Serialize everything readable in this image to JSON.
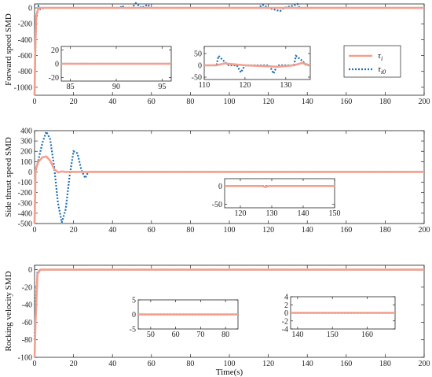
{
  "colors": {
    "tau_i": "#f4a08c",
    "tau_i0": "#1f6fb4",
    "axis": "#222222"
  },
  "legend": {
    "series_1": "τ",
    "series_1_sub": "i",
    "series_2": "τ",
    "series_2_sub": "i0",
    "placement": "inside-top-right-panel-1"
  },
  "chart_data": [
    {
      "type": "line",
      "ylabel": "Forward speed SMD",
      "xlabel": "",
      "xlim": [
        0,
        200
      ],
      "ylim": [
        -1100,
        50
      ],
      "xticks": [
        0,
        20,
        40,
        60,
        80,
        100,
        120,
        140,
        160,
        180,
        200
      ],
      "yticks": [
        0,
        -200,
        -400,
        -600,
        -800,
        -1000
      ],
      "series": [
        {
          "key": "tau_i",
          "name": "τi",
          "x": [
            0,
            0.3,
            0.8,
            2,
            4,
            10,
            44,
            45,
            50,
            60,
            115,
            130,
            140,
            200
          ],
          "y": [
            -1100,
            -600,
            -100,
            0,
            0,
            0,
            0,
            0,
            0,
            0,
            0,
            0,
            0,
            0
          ]
        },
        {
          "key": "tau_i0",
          "name": "τi0",
          "x": [
            0,
            0.3,
            0.8,
            2,
            3,
            5,
            44,
            45,
            46,
            50,
            52,
            55,
            58,
            60,
            115,
            117,
            120,
            126,
            128,
            133,
            135,
            136,
            140,
            200
          ],
          "y": [
            -1100,
            -700,
            -150,
            20,
            -15,
            0,
            0,
            30,
            0,
            0,
            60,
            0,
            40,
            0,
            0,
            40,
            0,
            -40,
            0,
            30,
            50,
            0,
            0,
            0
          ]
        }
      ],
      "insets": [
        {
          "xlim": [
            84,
            96
          ],
          "ylim": [
            -25,
            25
          ],
          "xticks": [
            85,
            90,
            95
          ],
          "yticks": [
            20,
            0,
            -20
          ],
          "series": [
            {
              "key": "tau_i0",
              "x": [
                84,
                96
              ],
              "y": [
                0,
                0
              ]
            },
            {
              "key": "tau_i",
              "x": [
                84,
                96
              ],
              "y": [
                0,
                0
              ]
            }
          ]
        },
        {
          "xlim": [
            110,
            136
          ],
          "ylim": [
            -60,
            80
          ],
          "xticks": [
            110,
            120,
            130
          ],
          "yticks": [
            50,
            0,
            -50
          ],
          "series": [
            {
              "key": "tau_i0",
              "x": [
                110,
                113,
                113.5,
                115,
                116,
                118,
                119,
                119.5,
                120,
                121,
                126,
                127,
                127.5,
                128,
                129,
                132,
                132.5,
                134,
                135,
                136
              ],
              "y": [
                0,
                0,
                40,
                15,
                0,
                0,
                -30,
                -15,
                0,
                0,
                0,
                -35,
                -15,
                0,
                0,
                0,
                40,
                20,
                0,
                0
              ]
            },
            {
              "key": "tau_i",
              "x": [
                110,
                113,
                115,
                120,
                128,
                132,
                134,
                136
              ],
              "y": [
                0,
                0,
                8,
                0,
                -6,
                0,
                10,
                0
              ]
            }
          ]
        }
      ]
    },
    {
      "type": "line",
      "ylabel": "Side thrust speed SMD",
      "xlabel": "",
      "xlim": [
        0,
        200
      ],
      "ylim": [
        -500,
        400
      ],
      "xticks": [
        0,
        20,
        40,
        60,
        80,
        100,
        120,
        140,
        160,
        180,
        200
      ],
      "yticks": [
        400,
        300,
        200,
        100,
        0,
        -100,
        -200,
        -300,
        -400,
        -500
      ],
      "series": [
        {
          "key": "tau_i0",
          "name": "τi0",
          "x": [
            0,
            0.5,
            2,
            4,
            6,
            8,
            10,
            12,
            14,
            16,
            18,
            20,
            22,
            24,
            26,
            27,
            28,
            35,
            200
          ],
          "y": [
            -500,
            0,
            120,
            280,
            390,
            320,
            60,
            -300,
            -490,
            -360,
            -40,
            200,
            180,
            20,
            -60,
            -20,
            0,
            0,
            0
          ]
        },
        {
          "key": "tau_i",
          "name": "τi",
          "x": [
            0,
            0.5,
            2,
            4,
            6,
            8,
            10,
            12,
            14,
            16,
            20,
            200
          ],
          "y": [
            -500,
            20,
            100,
            140,
            150,
            110,
            30,
            -5,
            5,
            0,
            0,
            0
          ]
        }
      ],
      "insets": [
        {
          "xlim": [
            115,
            150
          ],
          "ylim": [
            -60,
            20
          ],
          "xticks": [
            120,
            130,
            140,
            150
          ],
          "yticks": [
            0,
            -50
          ],
          "series": [
            {
              "key": "tau_i0",
              "x": [
                115,
                150
              ],
              "y": [
                0,
                0
              ]
            },
            {
              "key": "tau_i",
              "x": [
                115,
                127,
                128,
                129,
                150
              ],
              "y": [
                0,
                0,
                -3,
                0,
                0
              ]
            }
          ]
        }
      ]
    },
    {
      "type": "line",
      "ylabel": "Rocking velocity SMD",
      "xlabel": "Time(s)",
      "xlim": [
        0,
        200
      ],
      "ylim": [
        -100,
        5
      ],
      "xticks": [
        0,
        20,
        40,
        60,
        80,
        100,
        120,
        140,
        160,
        180,
        200
      ],
      "yticks": [
        0,
        -20,
        -40,
        -60,
        -80,
        -100
      ],
      "series": [
        {
          "key": "tau_i",
          "name": "τi",
          "x": [
            0,
            0.5,
            1.5,
            3,
            200
          ],
          "y": [
            -100,
            -60,
            -5,
            0,
            0
          ]
        },
        {
          "key": "tau_i0",
          "name": "τi0",
          "x": [
            0,
            0.5,
            1.5,
            3,
            200
          ],
          "y": [
            -80,
            -40,
            -3,
            0,
            0
          ]
        }
      ],
      "insets": [
        {
          "xlim": [
            45,
            85
          ],
          "ylim": [
            -5,
            5
          ],
          "xticks": [
            50,
            60,
            70,
            80
          ],
          "yticks": [
            5,
            0,
            -5
          ],
          "series": [
            {
              "key": "tau_i0",
              "x": [
                45,
                85
              ],
              "y": [
                0,
                0
              ]
            },
            {
              "key": "tau_i",
              "x": [
                45,
                85
              ],
              "y": [
                0,
                0
              ]
            }
          ]
        },
        {
          "xlim": [
            138,
            168
          ],
          "ylim": [
            -4,
            4
          ],
          "xticks": [
            140,
            150,
            160
          ],
          "yticks": [
            4,
            2,
            0,
            -2,
            -4
          ],
          "series": [
            {
              "key": "tau_i0",
              "x": [
                138,
                168
              ],
              "y": [
                0,
                0
              ]
            },
            {
              "key": "tau_i",
              "x": [
                138,
                168
              ],
              "y": [
                0,
                0
              ]
            }
          ]
        }
      ]
    }
  ]
}
